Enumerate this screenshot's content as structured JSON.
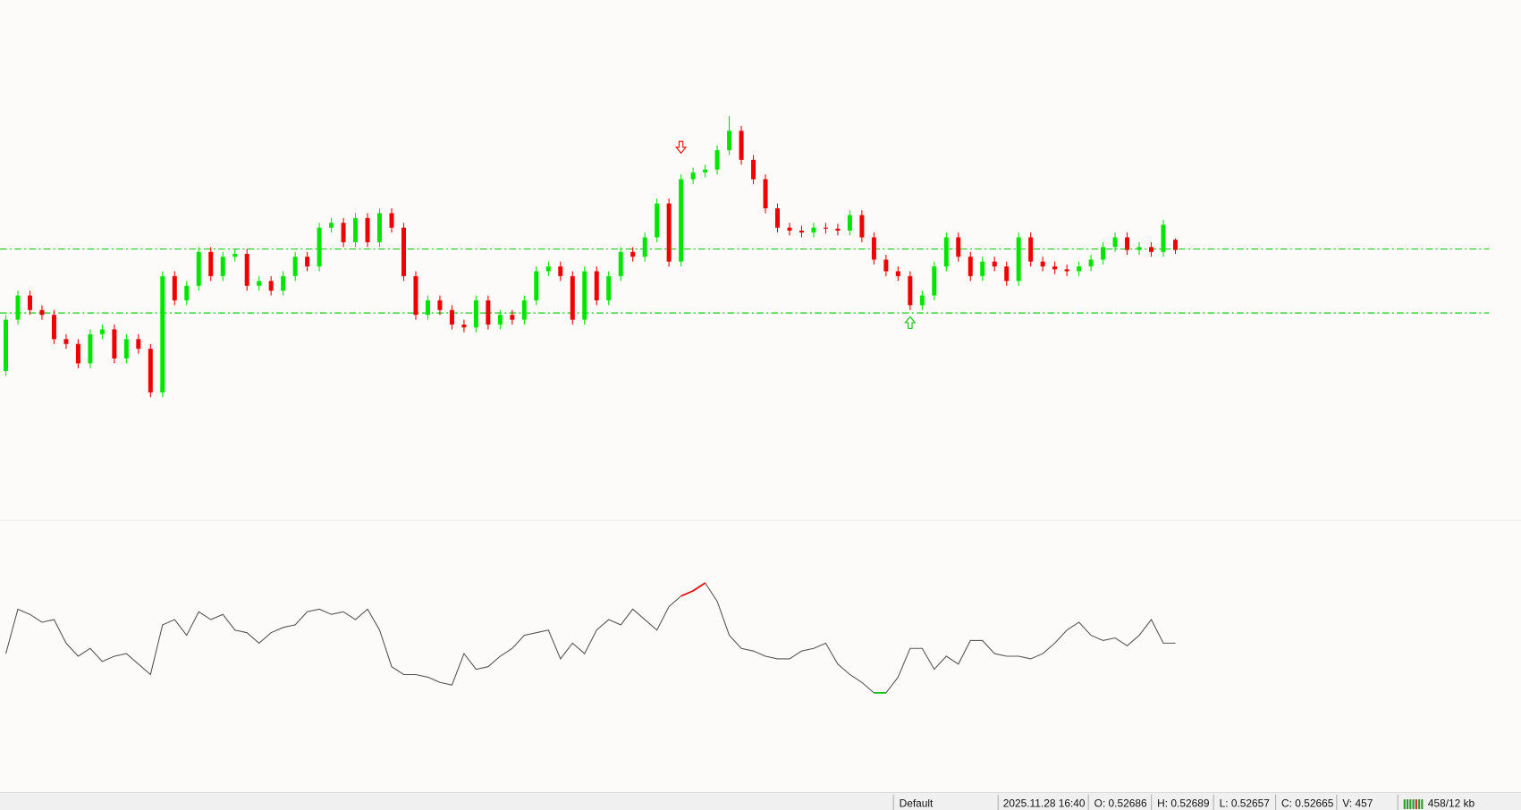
{
  "chart_data": [
    {
      "type": "candlestick",
      "ylim": [
        0.52121,
        0.53181
      ],
      "up_color": "#00e600",
      "down_color": "#f00000",
      "candles": [
        [
          0.52415,
          0.52531,
          0.52405,
          0.52521
        ],
        [
          0.52521,
          0.52581,
          0.52511,
          0.52571
        ],
        [
          0.52571,
          0.52581,
          0.52531,
          0.52541
        ],
        [
          0.52541,
          0.52551,
          0.52521,
          0.52531
        ],
        [
          0.52531,
          0.52541,
          0.52471,
          0.52481
        ],
        [
          0.52481,
          0.52491,
          0.52461,
          0.52471
        ],
        [
          0.52471,
          0.52481,
          0.52421,
          0.52431
        ],
        [
          0.52431,
          0.52501,
          0.52421,
          0.52491
        ],
        [
          0.52491,
          0.52511,
          0.52481,
          0.52501
        ],
        [
          0.52501,
          0.52511,
          0.52431,
          0.52441
        ],
        [
          0.52441,
          0.52491,
          0.52431,
          0.52481
        ],
        [
          0.52481,
          0.52491,
          0.52451,
          0.52461
        ],
        [
          0.52461,
          0.52471,
          0.52361,
          0.52371
        ],
        [
          0.52371,
          0.52621,
          0.52361,
          0.52611
        ],
        [
          0.52611,
          0.52621,
          0.52551,
          0.52561
        ],
        [
          0.52561,
          0.52601,
          0.52551,
          0.52591
        ],
        [
          0.52591,
          0.52671,
          0.52581,
          0.52661
        ],
        [
          0.52661,
          0.52671,
          0.52601,
          0.52611
        ],
        [
          0.52611,
          0.52661,
          0.52601,
          0.52651
        ],
        [
          0.52651,
          0.52667,
          0.52641,
          0.52657
        ],
        [
          0.52657,
          0.52667,
          0.52581,
          0.52591
        ],
        [
          0.52591,
          0.52611,
          0.52581,
          0.52601
        ],
        [
          0.52601,
          0.52611,
          0.52571,
          0.52581
        ],
        [
          0.52581,
          0.52621,
          0.52571,
          0.52611
        ],
        [
          0.52611,
          0.52661,
          0.52601,
          0.52651
        ],
        [
          0.52651,
          0.52661,
          0.52621,
          0.52631
        ],
        [
          0.52631,
          0.52721,
          0.52621,
          0.52711
        ],
        [
          0.52711,
          0.52731,
          0.52701,
          0.52721
        ],
        [
          0.52721,
          0.52731,
          0.52671,
          0.52681
        ],
        [
          0.52681,
          0.52741,
          0.52671,
          0.52731
        ],
        [
          0.52731,
          0.52741,
          0.52671,
          0.52681
        ],
        [
          0.52681,
          0.52751,
          0.52671,
          0.52741
        ],
        [
          0.52741,
          0.52751,
          0.52701,
          0.52711
        ],
        [
          0.52711,
          0.52721,
          0.52601,
          0.52611
        ],
        [
          0.52611,
          0.52621,
          0.52521,
          0.52531
        ],
        [
          0.52531,
          0.52571,
          0.52521,
          0.52561
        ],
        [
          0.52561,
          0.52571,
          0.52531,
          0.52541
        ],
        [
          0.52541,
          0.52551,
          0.52501,
          0.52511
        ],
        [
          0.52511,
          0.52521,
          0.52495,
          0.52505
        ],
        [
          0.52505,
          0.52571,
          0.52495,
          0.52561
        ],
        [
          0.52561,
          0.52571,
          0.52501,
          0.52511
        ],
        [
          0.52511,
          0.52541,
          0.52501,
          0.52531
        ],
        [
          0.52531,
          0.52541,
          0.52511,
          0.52521
        ],
        [
          0.52521,
          0.52571,
          0.52511,
          0.52561
        ],
        [
          0.52561,
          0.52631,
          0.52551,
          0.52621
        ],
        [
          0.52621,
          0.52641,
          0.52611,
          0.52631
        ],
        [
          0.52631,
          0.52641,
          0.52601,
          0.52611
        ],
        [
          0.52611,
          0.52621,
          0.52511,
          0.52521
        ],
        [
          0.52521,
          0.52631,
          0.52511,
          0.52621
        ],
        [
          0.52621,
          0.52631,
          0.52551,
          0.52561
        ],
        [
          0.52561,
          0.52621,
          0.52551,
          0.52611
        ],
        [
          0.52611,
          0.52671,
          0.52601,
          0.52661
        ],
        [
          0.52661,
          0.52671,
          0.52641,
          0.52651
        ],
        [
          0.52651,
          0.52701,
          0.52641,
          0.52691
        ],
        [
          0.52691,
          0.52771,
          0.52681,
          0.52761
        ],
        [
          0.52761,
          0.52771,
          0.52631,
          0.52641
        ],
        [
          0.52641,
          0.52821,
          0.52631,
          0.52811
        ],
        [
          0.52811,
          0.52835,
          0.52801,
          0.52825
        ],
        [
          0.52825,
          0.52841,
          0.52815,
          0.52831
        ],
        [
          0.52831,
          0.52881,
          0.52821,
          0.52871
        ],
        [
          0.52871,
          0.52941,
          0.52861,
          0.52911
        ],
        [
          0.52911,
          0.52921,
          0.52841,
          0.52851
        ],
        [
          0.52851,
          0.52861,
          0.52801,
          0.52811
        ],
        [
          0.52811,
          0.52821,
          0.52741,
          0.52751
        ],
        [
          0.52751,
          0.52761,
          0.52701,
          0.52711
        ],
        [
          0.52711,
          0.52721,
          0.52695,
          0.52705
        ],
        [
          0.52705,
          0.52715,
          0.52691,
          0.52701
        ],
        [
          0.52701,
          0.52721,
          0.52691,
          0.52711
        ],
        [
          0.52711,
          0.52721,
          0.52699,
          0.52709
        ],
        [
          0.52709,
          0.52719,
          0.52695,
          0.52705
        ],
        [
          0.52705,
          0.52747,
          0.52695,
          0.52737
        ],
        [
          0.52737,
          0.52747,
          0.52681,
          0.52691
        ],
        [
          0.52691,
          0.52701,
          0.52635,
          0.52645
        ],
        [
          0.52645,
          0.52655,
          0.52611,
          0.52621
        ],
        [
          0.52621,
          0.52631,
          0.52601,
          0.52611
        ],
        [
          0.52611,
          0.52621,
          0.52541,
          0.52551
        ],
        [
          0.52551,
          0.52581,
          0.52541,
          0.52571
        ],
        [
          0.52571,
          0.52641,
          0.52561,
          0.52631
        ],
        [
          0.52631,
          0.52701,
          0.52621,
          0.52691
        ],
        [
          0.52691,
          0.52701,
          0.52641,
          0.52651
        ],
        [
          0.52651,
          0.52661,
          0.52601,
          0.52611
        ],
        [
          0.52611,
          0.52651,
          0.52601,
          0.52641
        ],
        [
          0.52641,
          0.52651,
          0.52621,
          0.52631
        ],
        [
          0.52631,
          0.52641,
          0.52591,
          0.52601
        ],
        [
          0.52601,
          0.52701,
          0.52591,
          0.52691
        ],
        [
          0.52691,
          0.52701,
          0.52631,
          0.52641
        ],
        [
          0.52641,
          0.52651,
          0.52621,
          0.52631
        ],
        [
          0.52631,
          0.52641,
          0.52615,
          0.52625
        ],
        [
          0.52625,
          0.52635,
          0.52611,
          0.52621
        ],
        [
          0.52621,
          0.52641,
          0.52611,
          0.52631
        ],
        [
          0.52631,
          0.52655,
          0.52621,
          0.52645
        ],
        [
          0.52645,
          0.52681,
          0.52635,
          0.52671
        ],
        [
          0.52671,
          0.52701,
          0.52661,
          0.52691
        ],
        [
          0.52691,
          0.52701,
          0.52655,
          0.52665
        ],
        [
          0.52665,
          0.52681,
          0.52655,
          0.52671
        ],
        [
          0.52671,
          0.52681,
          0.52651,
          0.52661
        ],
        [
          0.52661,
          0.52727,
          0.52651,
          0.52717
        ],
        [
          0.52686,
          0.52689,
          0.52657,
          0.52665
        ]
      ],
      "levels": [
        {
          "value": 0.52667,
          "color": "#00c800"
        },
        {
          "value": 0.52535,
          "color": "#00c800"
        }
      ],
      "signals": [
        {
          "index": 56,
          "price": 0.52877,
          "direction": "down",
          "color": "#f00000"
        },
        {
          "index": 75,
          "price": 0.52515,
          "direction": "up",
          "color": "#00c000"
        }
      ]
    },
    {
      "type": "line",
      "ylim": [
        0,
        100
      ],
      "color": "#555555",
      "overbought": 73,
      "overbought_color": "#f00000",
      "oversold": 38,
      "oversold_color": "#00c000",
      "values": [
        52,
        69,
        67,
        64,
        65,
        56,
        51,
        54,
        49,
        51,
        52,
        48,
        44,
        63,
        65,
        59,
        68,
        65,
        67,
        61,
        60,
        56,
        60,
        62,
        63,
        68,
        69,
        67,
        68,
        65,
        69,
        61,
        47,
        44,
        44,
        43,
        41,
        40,
        52,
        46,
        47,
        51,
        54,
        59,
        60,
        61,
        50,
        56,
        52,
        61,
        65,
        63,
        69,
        65,
        61,
        70,
        74,
        76,
        79,
        72,
        59,
        54,
        53,
        51,
        50,
        50,
        53,
        54,
        56,
        48,
        44,
        41,
        37,
        37,
        43,
        54,
        54,
        46,
        51,
        48,
        57,
        57,
        52,
        51,
        51,
        50,
        52,
        56,
        61,
        64,
        59,
        57,
        58,
        55,
        59,
        65,
        56,
        56
      ]
    }
  ],
  "status_bar": {
    "items": [
      "Default",
      "2025.11.28 16:40",
      "O: 0.52686",
      "H: 0.52689",
      "L: 0.52657",
      "C: 0.52665",
      "V: 457",
      "458/12 kb"
    ]
  }
}
